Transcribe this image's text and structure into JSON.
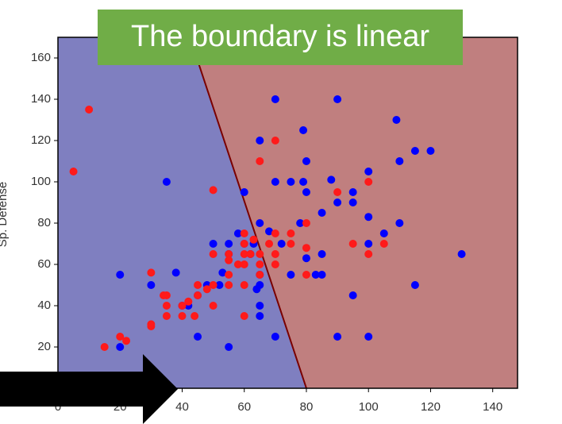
{
  "chart_data": {
    "type": "scatter",
    "title": "The boundary is linear",
    "ylabel": "Sp. Defense",
    "xlim": [
      0,
      148
    ],
    "ylim": [
      0,
      170
    ],
    "xticks": [
      0,
      20,
      40,
      60,
      80,
      100,
      120,
      140
    ],
    "yticks": [
      20,
      40,
      60,
      80,
      100,
      120,
      140,
      160
    ],
    "regions": [
      {
        "color": "#7f7fc0"
      },
      {
        "color": "#c07f7f"
      }
    ],
    "boundary": {
      "color": "#7a0000",
      "x": [
        42.5,
        80
      ],
      "y": [
        170,
        0
      ]
    },
    "series": [
      {
        "color": "#0000ff",
        "x": [
          20,
          20,
          30,
          35,
          38,
          40,
          42,
          45,
          45,
          48,
          50,
          52,
          53,
          55,
          55,
          55,
          58,
          60,
          60,
          62,
          63,
          64,
          65,
          65,
          65,
          65,
          65,
          65,
          68,
          70,
          70,
          70,
          72,
          75,
          75,
          78,
          79,
          79,
          80,
          80,
          80,
          83,
          85,
          85,
          85,
          88,
          90,
          90,
          90,
          95,
          95,
          95,
          100,
          100,
          100,
          100,
          105,
          109,
          110,
          110,
          115,
          115,
          120,
          130
        ],
        "y": [
          55,
          20,
          50,
          100,
          56,
          40,
          40,
          25,
          45,
          50,
          70,
          50,
          56,
          20,
          65,
          70,
          75,
          95,
          70,
          65,
          70,
          48,
          50,
          35,
          40,
          55,
          80,
          120,
          76,
          25,
          100,
          140,
          70,
          100,
          55,
          80,
          100,
          125,
          110,
          95,
          63,
          55,
          85,
          65,
          55,
          101,
          25,
          90,
          140,
          90,
          95,
          45,
          25,
          105,
          83,
          70,
          75,
          130,
          110,
          80,
          115,
          50,
          115,
          65
        ]
      },
      {
        "color": "#ff1a1a",
        "x": [
          5,
          10,
          15,
          20,
          22,
          30,
          30,
          30,
          34,
          35,
          35,
          35,
          40,
          40,
          42,
          44,
          45,
          45,
          48,
          50,
          50,
          50,
          50,
          55,
          55,
          55,
          55,
          58,
          60,
          60,
          60,
          60,
          60,
          60,
          62,
          63,
          65,
          65,
          65,
          65,
          68,
          70,
          70,
          70,
          70,
          75,
          75,
          80,
          80,
          80,
          90,
          95,
          100,
          100,
          105
        ],
        "y": [
          105,
          135,
          20,
          25,
          23,
          30,
          31,
          56,
          45,
          35,
          40,
          45,
          35,
          40,
          42,
          35,
          45,
          50,
          48,
          40,
          50,
          65,
          96,
          65,
          62,
          55,
          50,
          60,
          35,
          50,
          60,
          65,
          70,
          75,
          65,
          72,
          55,
          60,
          65,
          110,
          70,
          60,
          65,
          75,
          120,
          75,
          70,
          80,
          55,
          68,
          95,
          70,
          65,
          100,
          70
        ]
      }
    ]
  }
}
